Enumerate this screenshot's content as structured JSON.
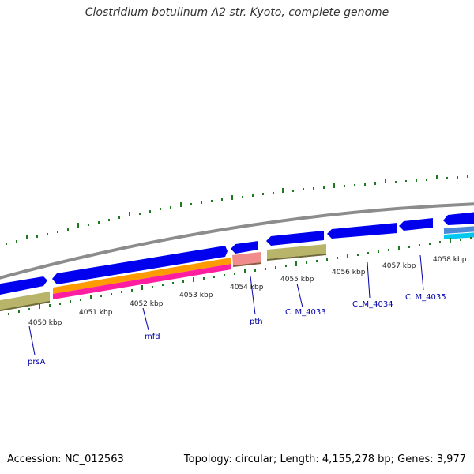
{
  "title": "Clostridium botulinum A2 str. Kyoto, complete genome",
  "footer": {
    "accession": "Accession: NC_012563",
    "summary": "Topology: circular; Length: 4,155,278 bp; Genes: 3,977"
  },
  "colors": {
    "backbone": "#8c8c8c",
    "cds_forward": "#0000ee",
    "olive_track": "#b8b46a",
    "orange_track": "#ff9a00",
    "magenta_track": "#ff1ea0",
    "pink_track": "#f08c8c",
    "steel_track": "#4a8ad8",
    "cyan_track": "#00c8f0",
    "tick_green": "#1f7a1f",
    "label_blue": "#0000aa"
  },
  "kbp_labels": [
    "4050 kbp",
    "4051 kbp",
    "4052 kbp",
    "4053 kbp",
    "4054 kbp",
    "4055 kbp",
    "4056 kbp",
    "4057 kbp",
    "4058 kbp"
  ],
  "gene_labels": [
    "prsA",
    "mfd",
    "pth",
    "CLM_4033",
    "CLM_4034",
    "CLM_4035"
  ]
}
